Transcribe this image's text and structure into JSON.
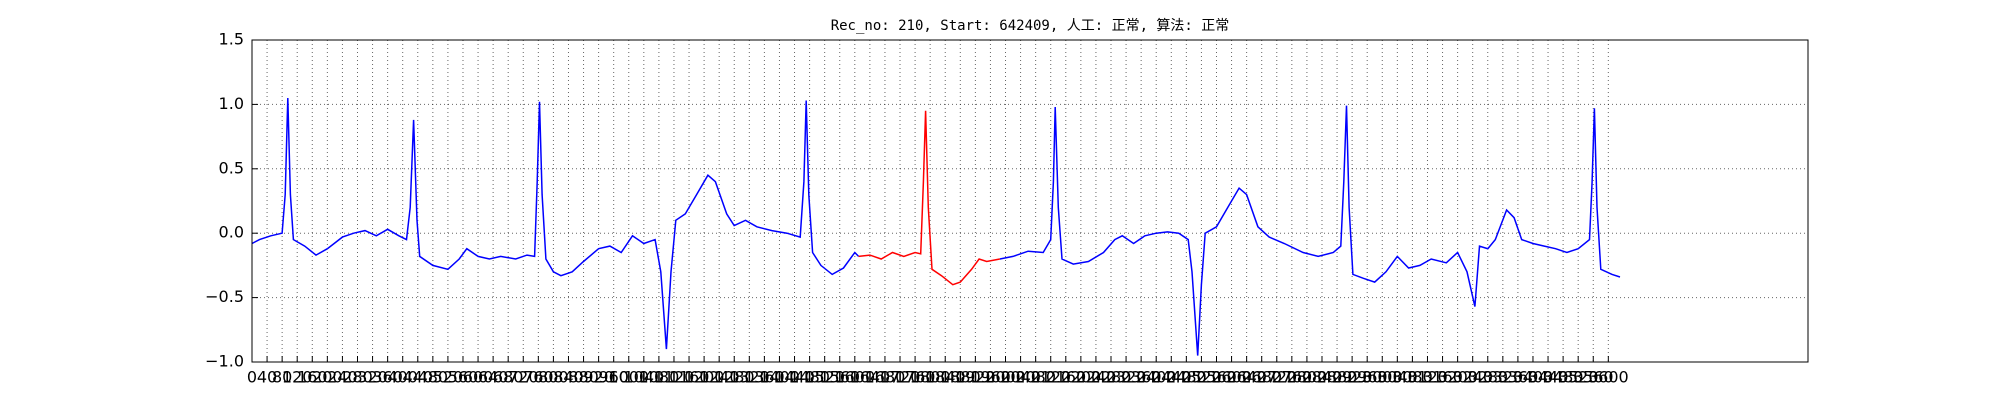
{
  "chart_data": {
    "type": "line",
    "title": "Rec_no: 210, Start: 642409, 人工: 正常, 算法: 正常",
    "xlim": [
      0,
      4130
    ],
    "ylim": [
      -1.0,
      1.5
    ],
    "grid": true,
    "yticks": [
      {
        "value": -1.0,
        "label": "−1.0"
      },
      {
        "value": -0.5,
        "label": "−0.5"
      },
      {
        "value": 0.0,
        "label": "0.0"
      },
      0.5,
      {
        "value": 1.0,
        "label": "1.0"
      },
      1.5
    ],
    "xticks": [
      0,
      40,
      80,
      120,
      160,
      200,
      240,
      280,
      320,
      360,
      400,
      440,
      480,
      520,
      560,
      600,
      640,
      680,
      720,
      760,
      800,
      840,
      880,
      920,
      960,
      1000,
      1040,
      1080,
      1120,
      1160,
      1200,
      1240,
      1280,
      1320,
      1360,
      1400,
      1440,
      1480,
      1520,
      1560,
      1600,
      1640,
      1680,
      1720,
      1760,
      1800,
      1840,
      1880,
      1920,
      1960,
      2000,
      2040,
      2080,
      2120,
      2160,
      2200,
      2240,
      2280,
      2320,
      2360,
      2400,
      2440,
      2480,
      2520,
      2560,
      2600,
      2640,
      2680,
      2720,
      2760,
      2800,
      2840,
      2880,
      2920,
      2960,
      3000,
      3040,
      3080,
      3120,
      3160,
      3200,
      3240,
      3280,
      3320,
      3360,
      3400,
      3440,
      3480,
      3520,
      3560,
      3600
    ],
    "series": [
      {
        "color": "#0000ff",
        "x": [
          0,
          20,
          50,
          80,
          88,
          95,
          102,
          110,
          140,
          170,
          200,
          240,
          270,
          300,
          330,
          360,
          390,
          410,
          420,
          429,
          438,
          445,
          480,
          520,
          550,
          570,
          600,
          630,
          660,
          700,
          730,
          750,
          757,
          763,
          770,
          780,
          800,
          820,
          850,
          880,
          920,
          950,
          980,
          1010,
          1040,
          1070,
          1085,
          1100,
          1112,
          1125,
          1150,
          1180,
          1210,
          1230,
          1260,
          1280,
          1310,
          1340,
          1380,
          1420,
          1455,
          1465,
          1471,
          1478,
          1488,
          1510,
          1540,
          1570,
          1600,
          1610,
          null,
          1985,
          2020,
          2060,
          2100,
          2120,
          2127,
          2132,
          2140,
          2150,
          2180,
          2220,
          2260,
          2290,
          2310,
          2340,
          2370,
          2400,
          2430,
          2460,
          2485,
          2495,
          2510,
          2520,
          2530,
          2560,
          2590,
          2620,
          2640,
          2670,
          2700,
          2740,
          2790,
          2830,
          2870,
          2890,
          2898,
          2905,
          2912,
          2922,
          2950,
          2980,
          3010,
          3040,
          3070,
          3100,
          3130,
          3170,
          3200,
          3225,
          3246,
          3258,
          3280,
          3300,
          3330,
          3350,
          3370,
          3400,
          3430,
          3460,
          3490,
          3520,
          3550,
          3557,
          3563,
          3570,
          3580,
          3610,
          3631
        ],
        "values": [
          -0.08,
          -0.05,
          -0.02,
          0.0,
          0.3,
          1.05,
          0.3,
          -0.05,
          -0.1,
          -0.17,
          -0.12,
          -0.03,
          0.0,
          0.02,
          -0.02,
          0.03,
          -0.02,
          -0.05,
          0.2,
          0.88,
          0.1,
          -0.18,
          -0.25,
          -0.28,
          -0.2,
          -0.12,
          -0.18,
          -0.2,
          -0.18,
          -0.2,
          -0.17,
          -0.18,
          0.4,
          1.02,
          0.3,
          -0.2,
          -0.3,
          -0.33,
          -0.3,
          -0.22,
          -0.12,
          -0.1,
          -0.15,
          -0.02,
          -0.08,
          -0.05,
          -0.3,
          -0.9,
          -0.3,
          0.1,
          0.15,
          0.3,
          0.45,
          0.4,
          0.15,
          0.06,
          0.1,
          0.05,
          0.02,
          0.0,
          -0.03,
          0.4,
          1.03,
          0.3,
          -0.15,
          -0.25,
          -0.32,
          -0.27,
          -0.15,
          -0.18,
          null,
          -0.2,
          -0.18,
          -0.14,
          -0.15,
          -0.05,
          0.4,
          0.98,
          0.2,
          -0.2,
          -0.24,
          -0.22,
          -0.15,
          -0.05,
          -0.02,
          -0.08,
          -0.02,
          0.0,
          0.01,
          0.0,
          -0.05,
          -0.3,
          -0.95,
          -0.4,
          0.0,
          0.05,
          0.2,
          0.35,
          0.3,
          0.05,
          -0.03,
          -0.08,
          -0.15,
          -0.18,
          -0.15,
          -0.1,
          0.4,
          0.99,
          0.2,
          -0.32,
          -0.35,
          -0.38,
          -0.3,
          -0.18,
          -0.27,
          -0.25,
          -0.2,
          -0.23,
          -0.15,
          -0.3,
          -0.57,
          -0.1,
          -0.12,
          -0.05,
          0.18,
          0.12,
          -0.05,
          -0.08,
          -0.1,
          -0.12,
          -0.15,
          -0.12,
          -0.05,
          0.4,
          0.97,
          0.2,
          -0.28,
          -0.32,
          -0.34
        ]
      },
      {
        "color": "#ff0000",
        "x": [
          1610,
          1640,
          1670,
          1700,
          1730,
          1760,
          1775,
          1782,
          1788,
          1795,
          1805,
          1830,
          1860,
          1880,
          1910,
          1930,
          1950,
          1985
        ],
        "values": [
          -0.18,
          -0.17,
          -0.2,
          -0.15,
          -0.18,
          -0.15,
          -0.16,
          0.4,
          0.95,
          0.2,
          -0.28,
          -0.33,
          -0.4,
          -0.38,
          -0.28,
          -0.2,
          -0.22,
          -0.2
        ]
      }
    ]
  }
}
